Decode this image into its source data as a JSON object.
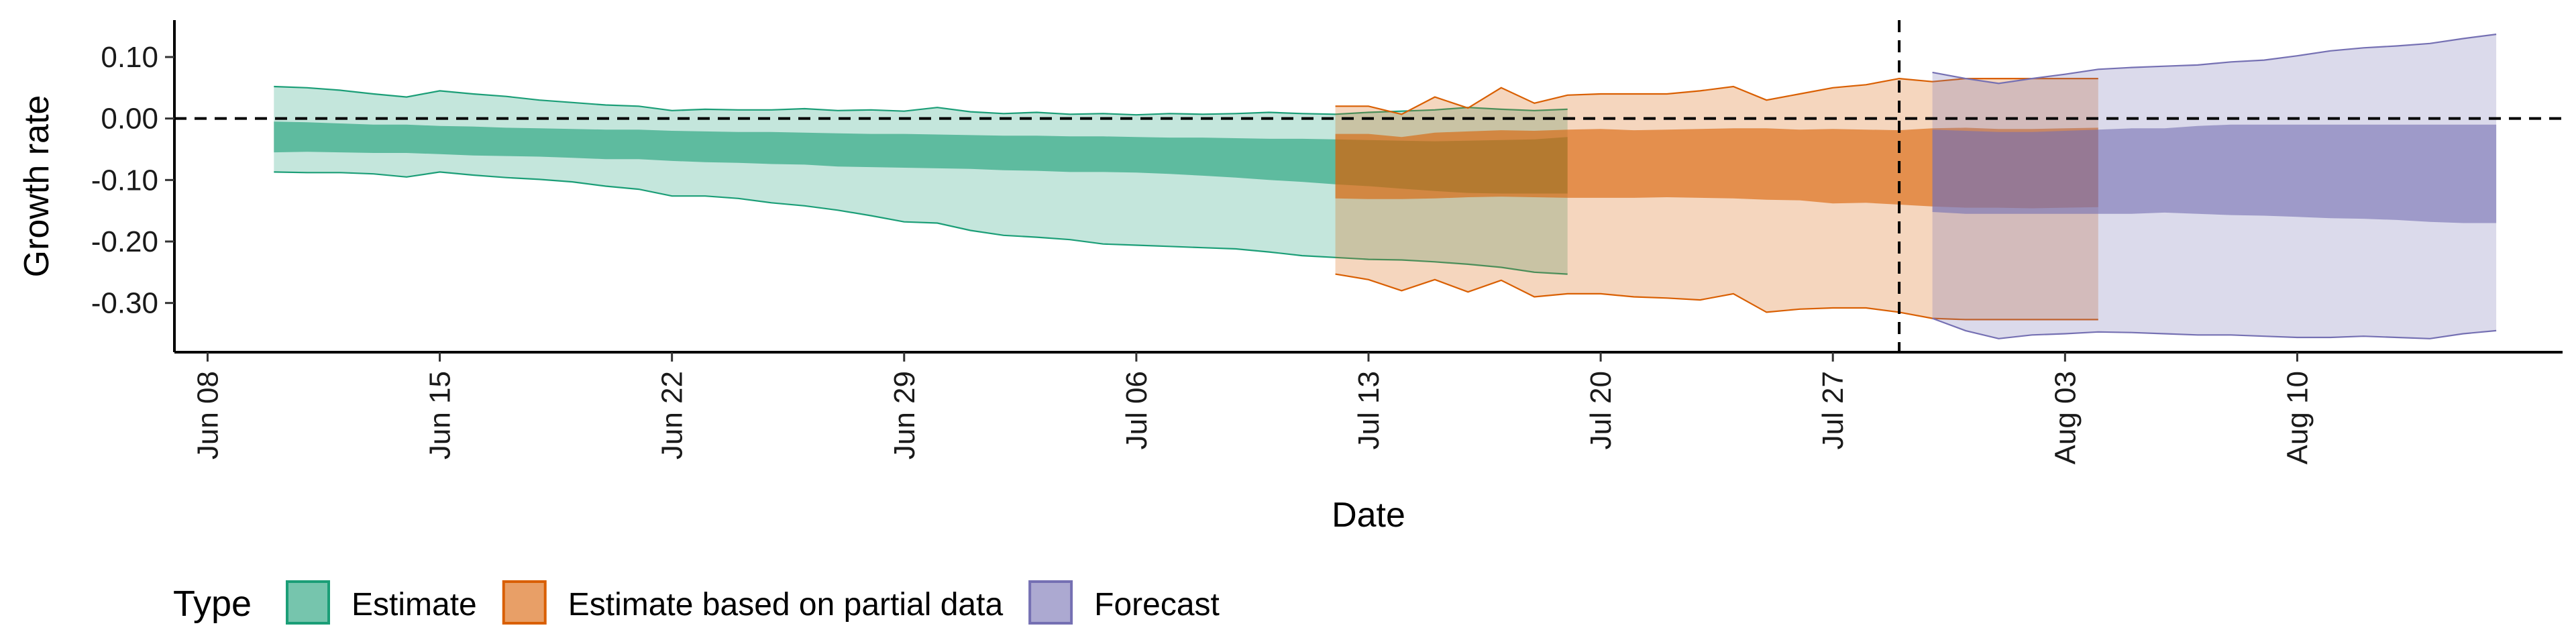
{
  "chart_data": {
    "type": "area",
    "title": "",
    "xlabel": "Date",
    "ylabel": "Growth rate",
    "ylim": [
      -0.38,
      0.16
    ],
    "xlim": [
      "2020-06-07",
      "2020-08-18"
    ],
    "y_ticks": [
      0.1,
      0.0,
      -0.1,
      -0.2,
      -0.3
    ],
    "y_tick_labels": [
      "0.10",
      "0.00",
      "-0.10",
      "-0.20",
      "-0.30"
    ],
    "x_ticks": [
      "2020-06-08",
      "2020-06-15",
      "2020-06-22",
      "2020-06-29",
      "2020-07-06",
      "2020-07-13",
      "2020-07-20",
      "2020-07-27",
      "2020-08-03",
      "2020-08-10"
    ],
    "x_tick_labels": [
      "Jun 08",
      "Jun 15",
      "Jun 22",
      "Jun 29",
      "Jul 06",
      "Jul 13",
      "Jul 20",
      "Jul 27",
      "Aug 03",
      "Aug 10"
    ],
    "reference_lines": {
      "horizontal_y": 0.0,
      "vertical_x": "2020-07-29"
    },
    "grid": false,
    "legend": {
      "title": "Type",
      "placement": "bottom-left",
      "entries": [
        "Estimate",
        "Estimate based on partial data",
        "Forecast"
      ]
    },
    "series": [
      {
        "name": "Estimate",
        "color": "#1b9e77",
        "start": "2020-06-10",
        "inner": {
          "lower": [
            -0.055,
            -0.054,
            -0.055,
            -0.056,
            -0.056,
            -0.058,
            -0.06,
            -0.061,
            -0.062,
            -0.064,
            -0.066,
            -0.066,
            -0.069,
            -0.071,
            -0.072,
            -0.074,
            -0.075,
            -0.078,
            -0.079,
            -0.08,
            -0.081,
            -0.082,
            -0.084,
            -0.085,
            -0.087,
            -0.087,
            -0.088,
            -0.09,
            -0.093,
            -0.096,
            -0.1,
            -0.103,
            -0.107,
            -0.11,
            -0.114,
            -0.118,
            -0.121,
            -0.122,
            -0.122,
            -0.122
          ],
          "upper": [
            -0.005,
            -0.006,
            -0.008,
            -0.01,
            -0.01,
            -0.012,
            -0.013,
            -0.015,
            -0.016,
            -0.017,
            -0.018,
            -0.018,
            -0.02,
            -0.021,
            -0.022,
            -0.022,
            -0.023,
            -0.024,
            -0.025,
            -0.025,
            -0.026,
            -0.027,
            -0.028,
            -0.028,
            -0.029,
            -0.029,
            -0.03,
            -0.031,
            -0.031,
            -0.032,
            -0.033,
            -0.033,
            -0.034,
            -0.035,
            -0.036,
            -0.037,
            -0.036,
            -0.035,
            -0.034,
            -0.03
          ]
        },
        "outer": {
          "lower": [
            -0.087,
            -0.088,
            -0.088,
            -0.09,
            -0.095,
            -0.087,
            -0.092,
            -0.096,
            -0.099,
            -0.103,
            -0.11,
            -0.115,
            -0.126,
            -0.126,
            -0.13,
            -0.137,
            -0.142,
            -0.149,
            -0.158,
            -0.168,
            -0.17,
            -0.182,
            -0.19,
            -0.193,
            -0.197,
            -0.204,
            -0.206,
            -0.208,
            -0.21,
            -0.212,
            -0.217,
            -0.223,
            -0.226,
            -0.229,
            -0.23,
            -0.233,
            -0.237,
            -0.242,
            -0.25,
            -0.253
          ],
          "upper": [
            0.052,
            0.05,
            0.046,
            0.04,
            0.035,
            0.045,
            0.04,
            0.036,
            0.03,
            0.026,
            0.022,
            0.02,
            0.013,
            0.015,
            0.014,
            0.014,
            0.016,
            0.013,
            0.014,
            0.012,
            0.018,
            0.011,
            0.008,
            0.01,
            0.007,
            0.008,
            0.006,
            0.008,
            0.007,
            0.008,
            0.01,
            0.008,
            0.007,
            0.01,
            0.012,
            0.014,
            0.018,
            0.015,
            0.013,
            0.015
          ]
        }
      },
      {
        "name": "Estimate based on partial data",
        "color": "#d95f02",
        "start": "2020-07-12",
        "inner": {
          "lower": [
            -0.13,
            -0.131,
            -0.131,
            -0.13,
            -0.128,
            -0.127,
            -0.128,
            -0.129,
            -0.129,
            -0.129,
            -0.128,
            -0.129,
            -0.13,
            -0.132,
            -0.133,
            -0.138,
            -0.137,
            -0.14,
            -0.143,
            -0.145,
            -0.145,
            -0.146,
            -0.145,
            -0.144
          ],
          "upper": [
            -0.025,
            -0.025,
            -0.03,
            -0.023,
            -0.021,
            -0.019,
            -0.02,
            -0.018,
            -0.017,
            -0.019,
            -0.018,
            -0.017,
            -0.016,
            -0.016,
            -0.018,
            -0.017,
            -0.018,
            -0.019,
            -0.016,
            -0.015,
            -0.017,
            -0.017,
            -0.016,
            -0.015
          ]
        },
        "outer": {
          "lower": [
            -0.253,
            -0.262,
            -0.28,
            -0.262,
            -0.282,
            -0.263,
            -0.29,
            -0.285,
            -0.285,
            -0.29,
            -0.292,
            -0.295,
            -0.285,
            -0.315,
            -0.31,
            -0.308,
            -0.308,
            -0.315,
            -0.325,
            -0.327,
            -0.327,
            -0.327,
            -0.327,
            -0.327
          ],
          "upper": [
            0.02,
            0.02,
            0.007,
            0.035,
            0.017,
            0.05,
            0.025,
            0.038,
            0.04,
            0.04,
            0.04,
            0.045,
            0.052,
            0.03,
            0.04,
            0.05,
            0.055,
            0.065,
            0.06,
            0.065,
            0.065,
            0.065,
            0.065,
            0.065
          ]
        }
      },
      {
        "name": "Forecast",
        "color": "#7570b3",
        "start": "2020-07-30",
        "inner": {
          "lower": [
            -0.152,
            -0.155,
            -0.155,
            -0.155,
            -0.155,
            -0.155,
            -0.155,
            -0.153,
            -0.155,
            -0.157,
            -0.158,
            -0.16,
            -0.162,
            -0.163,
            -0.165,
            -0.168,
            -0.17,
            -0.17
          ],
          "upper": [
            -0.018,
            -0.02,
            -0.022,
            -0.022,
            -0.02,
            -0.018,
            -0.016,
            -0.016,
            -0.012,
            -0.01,
            -0.01,
            -0.01,
            -0.01,
            -0.01,
            -0.01,
            -0.01,
            -0.01,
            -0.01
          ]
        },
        "outer": {
          "lower": [
            -0.325,
            -0.345,
            -0.358,
            -0.352,
            -0.35,
            -0.347,
            -0.348,
            -0.35,
            -0.352,
            -0.352,
            -0.354,
            -0.356,
            -0.356,
            -0.354,
            -0.356,
            -0.358,
            -0.35,
            -0.345
          ],
          "upper": [
            0.075,
            0.065,
            0.057,
            0.065,
            0.072,
            0.08,
            0.083,
            0.085,
            0.087,
            0.092,
            0.095,
            0.102,
            0.11,
            0.115,
            0.118,
            0.122,
            0.13,
            0.137
          ]
        }
      }
    ]
  }
}
